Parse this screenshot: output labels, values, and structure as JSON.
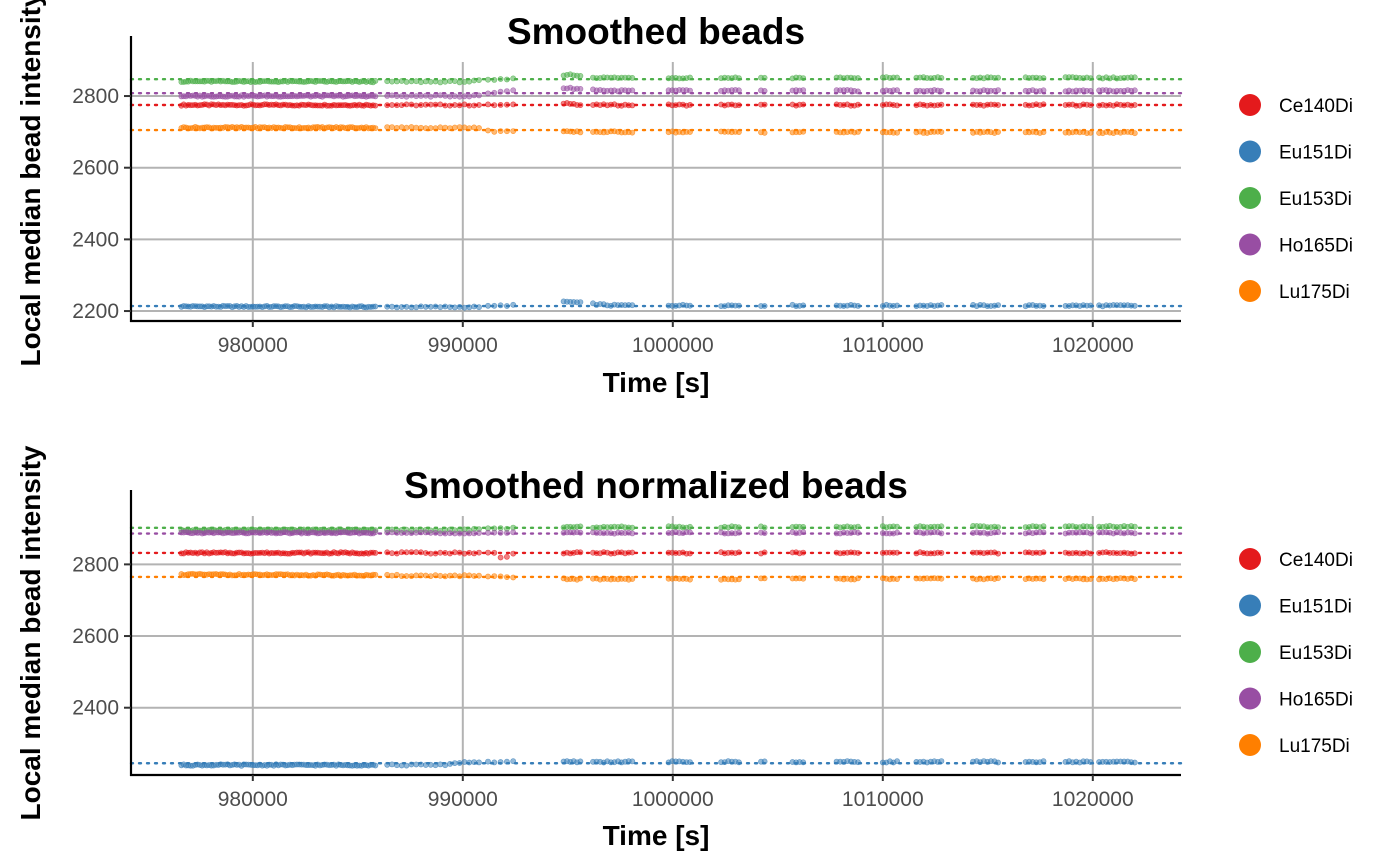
{
  "colors": {
    "Ce140Di": "#e41a1c",
    "Eu151Di": "#377eb8",
    "Eu153Di": "#4daf4a",
    "Ho165Di": "#984ea3",
    "Lu175Di": "#ff7f00"
  },
  "chart_data": [
    {
      "type": "scatter",
      "title": "Smoothed beads",
      "xlabel": "Time [s]",
      "ylabel": "Local median bead intensity",
      "xlim": [
        974200,
        1024200
      ],
      "ylim": [
        2175,
        2895
      ],
      "x_ticks": [
        980000,
        990000,
        1000000,
        1010000,
        1020000
      ],
      "x_tick_labels": [
        "980000",
        "990000",
        "1000000",
        "1010000",
        "1020000"
      ],
      "y_ticks": [
        2200,
        2400,
        2600,
        2800
      ],
      "y_tick_labels": [
        "2200",
        "2400",
        "2600",
        "2800"
      ],
      "grid": true,
      "legend_position": "right",
      "series": [
        {
          "name": "Ce140Di",
          "reference": 2775,
          "levels": [
            [
              976500,
              2775
            ],
            [
              1022000,
              2775
            ]
          ],
          "bump": {
            "x": 995000,
            "dy": 5
          }
        },
        {
          "name": "Eu151Di",
          "reference": 2214,
          "levels": [
            [
              976500,
              2213
            ],
            [
              990500,
              2211
            ],
            [
              992500,
              2217
            ],
            [
              995000,
              2226
            ],
            [
              997000,
              2216
            ],
            [
              1022000,
              2215
            ]
          ],
          "bump": null
        },
        {
          "name": "Eu153Di",
          "reference": 2847,
          "levels": [
            [
              976500,
              2841
            ],
            [
              990000,
              2840
            ],
            [
              992500,
              2848
            ],
            [
              995000,
              2860
            ],
            [
              996500,
              2851
            ],
            [
              1022000,
              2851
            ]
          ],
          "bump": null
        },
        {
          "name": "Ho165Di",
          "reference": 2808,
          "levels": [
            [
              976500,
              2800
            ],
            [
              990500,
              2800
            ],
            [
              992500,
              2818
            ],
            [
              995000,
              2822
            ],
            [
              997000,
              2815
            ],
            [
              1022000,
              2815
            ]
          ],
          "bump": null
        },
        {
          "name": "Lu175Di",
          "reference": 2705,
          "levels": [
            [
              976500,
              2712
            ],
            [
              990500,
              2712
            ],
            [
              991500,
              2702
            ],
            [
              995000,
              2700
            ],
            [
              1022000,
              2698
            ]
          ],
          "bump": null
        }
      ]
    },
    {
      "type": "scatter",
      "title": "Smoothed normalized beads",
      "xlabel": "Time [s]",
      "ylabel": "Local median bead intensity",
      "xlim": [
        974200,
        1024200
      ],
      "ylim": [
        2215,
        2935
      ],
      "x_ticks": [
        980000,
        990000,
        1000000,
        1010000,
        1020000
      ],
      "x_tick_labels": [
        "980000",
        "990000",
        "1000000",
        "1010000",
        "1020000"
      ],
      "y_ticks": [
        2400,
        2600,
        2800
      ],
      "y_tick_labels": [
        "2400",
        "2600",
        "2800"
      ],
      "grid": true,
      "legend_position": "right",
      "series": [
        {
          "name": "Ce140Di",
          "reference": 2832,
          "levels": [
            [
              976500,
              2832
            ],
            [
              1022000,
              2832
            ]
          ],
          "bump": {
            "x": 992000,
            "dy": -12
          }
        },
        {
          "name": "Eu151Di",
          "reference": 2245,
          "levels": [
            [
              976500,
              2240
            ],
            [
              989000,
              2240
            ],
            [
              990000,
              2248
            ],
            [
              992000,
              2249
            ],
            [
              1022000,
              2249
            ]
          ],
          "bump": null
        },
        {
          "name": "Eu153Di",
          "reference": 2902,
          "levels": [
            [
              976500,
              2895
            ],
            [
              990000,
              2896
            ],
            [
              992000,
              2901
            ],
            [
              995000,
              2904
            ],
            [
              1022000,
              2906
            ]
          ],
          "bump": null
        },
        {
          "name": "Ho165Di",
          "reference": 2886,
          "levels": [
            [
              976500,
              2888
            ],
            [
              1022000,
              2888
            ]
          ],
          "bump": null
        },
        {
          "name": "Lu175Di",
          "reference": 2765,
          "levels": [
            [
              976500,
              2772
            ],
            [
              990500,
              2768
            ],
            [
              992000,
              2764
            ],
            [
              995000,
              2759
            ],
            [
              1022000,
              2760
            ]
          ],
          "bump": null
        }
      ]
    }
  ]
}
